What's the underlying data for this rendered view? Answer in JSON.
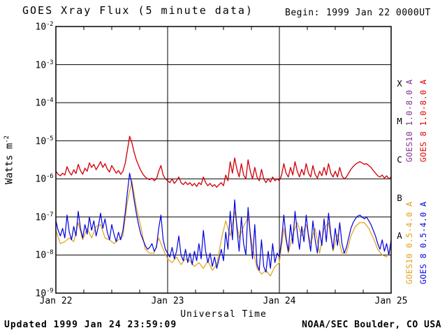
{
  "header": {
    "title": "GOES Xray Flux (5 minute data)",
    "begin_label": "Begin:",
    "begin_value": "1999 Jan 22 0000UT"
  },
  "axes": {
    "ylabel_base": "Watts m",
    "ylabel_exp": "-2",
    "xlabel": "Universal Time"
  },
  "footer": {
    "updated": "Updated 1999 Jan 24 23:59:09",
    "source": "NOAA/SEC Boulder, CO USA"
  },
  "side_labels": [
    {
      "text": "GOES10 1.0-8.0 A",
      "color": "#7d2e8d",
      "column": 0,
      "half": 0
    },
    {
      "text": "GOES 8 1.0-8.0 A",
      "color": "#dd0000",
      "column": 1,
      "half": 0
    },
    {
      "text": "GOES10 0.5-4.0 A",
      "color": "#e0a018",
      "column": 0,
      "half": 1
    },
    {
      "text": "GOES 8 0.5-4.0 A",
      "color": "#0000dd",
      "column": 1,
      "half": 1
    }
  ],
  "chart_data": {
    "type": "line",
    "title": "GOES Xray Flux (5 minute data)",
    "begin": "1999 Jan 22 0000UT",
    "xlabel": "Universal Time",
    "ylabel": "Watts m^-2",
    "x_unit": "days since 1999 Jan 22 0000UT",
    "x_range_days": [
      0,
      3
    ],
    "x_tick_days": [
      0,
      1,
      2,
      3
    ],
    "x_tick_labels": [
      "Jan 22",
      "Jan 23",
      "Jan 24",
      "Jan 25"
    ],
    "y_scale": "log10",
    "y_tick_exponents": [
      -2,
      -3,
      -4,
      -5,
      -6,
      -7,
      -8,
      -9
    ],
    "grid_exponents": [
      -3,
      -4,
      -5,
      -6,
      -7,
      -8
    ],
    "day_gridlines_days": [
      1,
      2
    ],
    "flare_class_letters": [
      "X",
      "M",
      "C",
      "B",
      "A"
    ],
    "flare_class_center_exponents": [
      -3.5,
      -4.5,
      -5.5,
      -6.5,
      -7.5
    ],
    "series": [
      {
        "name": "GOES10 1.0-8.0 A",
        "color": "#7d2e8d",
        "x_start": 0,
        "x_step": 0.02,
        "log10_values": [
          -5.8,
          -5.88,
          -5.92,
          -5.85,
          -5.9,
          -5.68,
          -5.82,
          -5.9,
          -5.76,
          -5.86,
          -5.62,
          -5.78,
          -5.88,
          -5.72,
          -5.8,
          -5.58,
          -5.7,
          -5.62,
          -5.76,
          -5.66,
          -5.55,
          -5.7,
          -5.6,
          -5.74,
          -5.82,
          -5.65,
          -5.75,
          -5.85,
          -5.78,
          -5.88,
          -5.8,
          -5.6,
          -5.25,
          -4.88,
          -5.05,
          -5.3,
          -5.5,
          -5.65,
          -5.78,
          -5.88,
          -5.95,
          -6.0,
          -6.02,
          -5.98,
          -6.05,
          -6.0,
          -5.8,
          -5.65,
          -5.9,
          -6.0,
          -6.05,
          -6.1,
          -6.0,
          -6.12,
          -6.05,
          -5.95,
          -6.1,
          -6.15,
          -6.08,
          -6.15,
          -6.1,
          -6.18,
          -6.12,
          -6.2,
          -6.1,
          -6.15,
          -5.95,
          -6.1,
          -6.18,
          -6.12,
          -6.2,
          -6.15,
          -6.22,
          -6.15,
          -6.1,
          -6.18,
          -5.9,
          -6.05,
          -5.55,
          -5.85,
          -5.45,
          -5.75,
          -5.95,
          -5.6,
          -5.9,
          -6.0,
          -5.5,
          -5.8,
          -6.0,
          -5.7,
          -5.95,
          -6.05,
          -5.75,
          -6.0,
          -6.1,
          -6.0,
          -6.08,
          -5.95,
          -6.05,
          -6.0,
          -6.05,
          -5.9,
          -5.6,
          -5.85,
          -5.95,
          -5.7,
          -5.9,
          -5.55,
          -5.8,
          -5.95,
          -5.75,
          -5.9,
          -5.6,
          -5.85,
          -5.95,
          -5.65,
          -5.88,
          -5.98,
          -5.8,
          -5.92,
          -5.7,
          -5.9,
          -5.6,
          -5.85,
          -5.95,
          -5.8,
          -5.95,
          -5.7,
          -5.92,
          -6.0,
          -5.95,
          -5.85,
          -5.75,
          -5.68,
          -5.62,
          -5.58,
          -5.55,
          -5.58,
          -5.62,
          -5.6,
          -5.65,
          -5.7,
          -5.78,
          -5.85,
          -5.92,
          -5.95,
          -5.9,
          -5.98,
          -5.92,
          -6.0,
          -5.95
        ]
      },
      {
        "name": "GOES10 0.5-4.0 A",
        "color": "#e0a018",
        "x_start": 0,
        "x_step": 0.04,
        "log10_values": [
          -7.35,
          -7.7,
          -7.65,
          -7.55,
          -7.65,
          -7.15,
          -7.6,
          -7.3,
          -7.55,
          -7.25,
          -7.2,
          -7.55,
          -7.6,
          -7.7,
          -7.6,
          -7.5,
          -6.6,
          -6.05,
          -6.75,
          -7.25,
          -7.85,
          -7.95,
          -7.95,
          -7.55,
          -7.85,
          -8.1,
          -8.2,
          -8.05,
          -8.25,
          -8.1,
          -8.15,
          -8.3,
          -8.2,
          -8.35,
          -8.15,
          -8.4,
          -8.25,
          -7.6,
          -7.1,
          -7.5,
          -6.85,
          -7.55,
          -7.25,
          -7.0,
          -7.8,
          -8.35,
          -8.5,
          -8.4,
          -8.55,
          -8.3,
          -8.2,
          -7.3,
          -7.95,
          -7.45,
          -7.15,
          -7.5,
          -7.2,
          -7.7,
          -7.3,
          -7.95,
          -7.3,
          -7.15,
          -7.9,
          -7.45,
          -7.95,
          -7.95,
          -7.5,
          -7.25,
          -7.15,
          -7.15,
          -7.3,
          -7.55,
          -7.85,
          -8.0,
          -8.05,
          -7.8
        ]
      },
      {
        "name": "GOES 8 0.5-4.0 A",
        "color": "#0000dd",
        "x_start": 0,
        "x_step": 0.02,
        "log10_values": [
          -7.1,
          -7.35,
          -7.5,
          -7.3,
          -7.55,
          -6.95,
          -7.4,
          -7.6,
          -7.25,
          -7.5,
          -6.85,
          -7.3,
          -7.55,
          -7.2,
          -7.45,
          -7.0,
          -7.35,
          -7.1,
          -7.5,
          -7.25,
          -6.9,
          -7.3,
          -7.05,
          -7.4,
          -7.6,
          -7.2,
          -7.45,
          -7.65,
          -7.4,
          -7.6,
          -7.35,
          -6.9,
          -6.35,
          -5.85,
          -6.15,
          -6.55,
          -6.9,
          -7.2,
          -7.45,
          -7.6,
          -7.75,
          -7.85,
          -7.8,
          -7.7,
          -7.9,
          -7.8,
          -7.3,
          -6.95,
          -7.6,
          -7.85,
          -7.95,
          -8.05,
          -7.8,
          -8.1,
          -7.9,
          -7.5,
          -8.0,
          -8.15,
          -7.85,
          -8.2,
          -7.95,
          -8.25,
          -7.9,
          -8.15,
          -7.7,
          -8.1,
          -7.35,
          -7.9,
          -8.2,
          -7.95,
          -8.3,
          -8.05,
          -8.35,
          -8.1,
          -7.85,
          -8.15,
          -7.4,
          -7.85,
          -6.85,
          -7.6,
          -6.55,
          -7.3,
          -7.9,
          -7.0,
          -7.7,
          -8.0,
          -6.75,
          -7.5,
          -8.1,
          -7.2,
          -8.25,
          -8.4,
          -7.6,
          -8.3,
          -8.45,
          -7.9,
          -8.35,
          -7.7,
          -8.2,
          -7.95,
          -8.05,
          -7.6,
          -6.95,
          -7.55,
          -7.9,
          -7.2,
          -7.7,
          -6.85,
          -7.4,
          -7.85,
          -7.25,
          -7.65,
          -6.95,
          -7.5,
          -7.9,
          -7.1,
          -7.6,
          -7.95,
          -7.35,
          -7.75,
          -7.05,
          -7.65,
          -6.9,
          -7.45,
          -7.85,
          -7.3,
          -7.75,
          -7.15,
          -7.7,
          -7.95,
          -7.8,
          -7.55,
          -7.3,
          -7.15,
          -7.05,
          -6.98,
          -6.95,
          -7.0,
          -7.05,
          -7.0,
          -7.1,
          -7.2,
          -7.35,
          -7.5,
          -7.7,
          -7.85,
          -7.6,
          -7.9,
          -7.7,
          -8.0,
          -7.6
        ]
      },
      {
        "name": "GOES 8 1.0-8.0 A",
        "color": "#dd0000",
        "x_start": 0,
        "x_step": 0.02,
        "log10_values": [
          -5.8,
          -5.88,
          -5.92,
          -5.85,
          -5.9,
          -5.68,
          -5.82,
          -5.9,
          -5.76,
          -5.86,
          -5.62,
          -5.78,
          -5.88,
          -5.72,
          -5.8,
          -5.58,
          -5.7,
          -5.62,
          -5.76,
          -5.66,
          -5.55,
          -5.7,
          -5.6,
          -5.74,
          -5.82,
          -5.65,
          -5.75,
          -5.85,
          -5.78,
          -5.88,
          -5.8,
          -5.6,
          -5.25,
          -4.88,
          -5.05,
          -5.3,
          -5.5,
          -5.65,
          -5.78,
          -5.88,
          -5.95,
          -6.0,
          -6.02,
          -5.98,
          -6.05,
          -6.0,
          -5.8,
          -5.65,
          -5.9,
          -6.0,
          -6.05,
          -6.1,
          -6.0,
          -6.12,
          -6.05,
          -5.95,
          -6.1,
          -6.15,
          -6.08,
          -6.15,
          -6.1,
          -6.18,
          -6.12,
          -6.2,
          -6.1,
          -6.15,
          -5.95,
          -6.1,
          -6.18,
          -6.12,
          -6.2,
          -6.15,
          -6.22,
          -6.15,
          -6.1,
          -6.18,
          -5.9,
          -6.05,
          -5.55,
          -5.85,
          -5.45,
          -5.75,
          -5.95,
          -5.6,
          -5.9,
          -6.0,
          -5.5,
          -5.8,
          -6.0,
          -5.7,
          -5.95,
          -6.05,
          -5.75,
          -6.0,
          -6.1,
          -6.0,
          -6.08,
          -5.95,
          -6.05,
          -6.0,
          -6.05,
          -5.9,
          -5.6,
          -5.85,
          -5.95,
          -5.7,
          -5.9,
          -5.55,
          -5.8,
          -5.95,
          -5.75,
          -5.9,
          -5.6,
          -5.85,
          -5.95,
          -5.65,
          -5.88,
          -5.98,
          -5.8,
          -5.92,
          -5.7,
          -5.9,
          -5.6,
          -5.85,
          -5.95,
          -5.8,
          -5.95,
          -5.7,
          -5.92,
          -6.0,
          -5.95,
          -5.85,
          -5.75,
          -5.68,
          -5.62,
          -5.58,
          -5.55,
          -5.58,
          -5.62,
          -5.6,
          -5.65,
          -5.7,
          -5.78,
          -5.85,
          -5.92,
          -5.95,
          -5.9,
          -5.98,
          -5.92,
          -6.0,
          -5.95
        ]
      }
    ]
  }
}
